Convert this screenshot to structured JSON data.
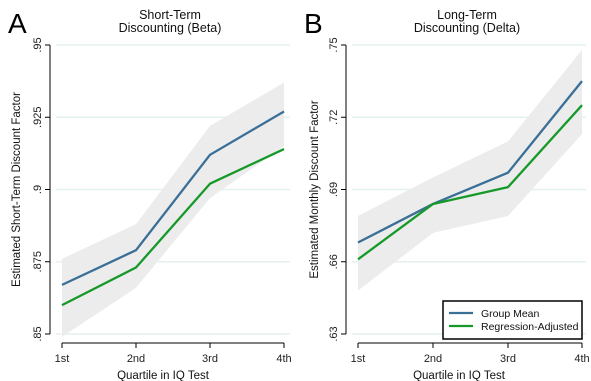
{
  "chart_data": [
    {
      "type": "line",
      "panel_label": "A",
      "title": [
        "Short-Term",
        "Discounting (Beta)"
      ],
      "xlabel": "Quartile in IQ Test",
      "ylabel": "Estimated Short-Term Discount Factor",
      "categories": [
        "1st",
        "2nd",
        "3rd",
        "4th"
      ],
      "ylim": [
        0.85,
        0.95
      ],
      "yticks": [
        0.85,
        0.875,
        0.9,
        0.925,
        0.95
      ],
      "ytick_labels": [
        ".85",
        ".875",
        ".9",
        ".925",
        ".95"
      ],
      "grid": "horizontal",
      "series": [
        {
          "name": "Group Mean",
          "color": "#3a6f98",
          "values": [
            0.867,
            0.879,
            0.912,
            0.927
          ]
        },
        {
          "name": "Regression-Adjusted",
          "color": "#17992a",
          "values": [
            0.86,
            0.873,
            0.902,
            0.914
          ]
        }
      ],
      "ci_band": {
        "color": "#ececec",
        "lower": [
          0.849,
          0.866,
          0.897,
          0.915
        ],
        "upper": [
          0.876,
          0.888,
          0.922,
          0.937
        ]
      }
    },
    {
      "type": "line",
      "panel_label": "B",
      "title": [
        "Long-Term",
        "Discounting (Delta)"
      ],
      "xlabel": "Quartile in IQ Test",
      "ylabel": "Estimated Monthly Discount Factor",
      "categories": [
        "1st",
        "2nd",
        "3rd",
        "4th"
      ],
      "ylim": [
        0.63,
        0.75
      ],
      "yticks": [
        0.63,
        0.66,
        0.69,
        0.72,
        0.75
      ],
      "ytick_labels": [
        ".63",
        ".66",
        ".69",
        ".72",
        ".75"
      ],
      "grid": "horizontal",
      "legend_position": "bottom-right",
      "series": [
        {
          "name": "Group Mean",
          "color": "#3a6f98",
          "values": [
            0.668,
            0.684,
            0.697,
            0.735
          ]
        },
        {
          "name": "Regression-Adjusted",
          "color": "#17992a",
          "values": [
            0.661,
            0.684,
            0.691,
            0.725
          ]
        }
      ],
      "ci_band": {
        "color": "#ececec",
        "lower": [
          0.648,
          0.672,
          0.679,
          0.713
        ],
        "upper": [
          0.679,
          0.695,
          0.71,
          0.748
        ]
      }
    }
  ]
}
